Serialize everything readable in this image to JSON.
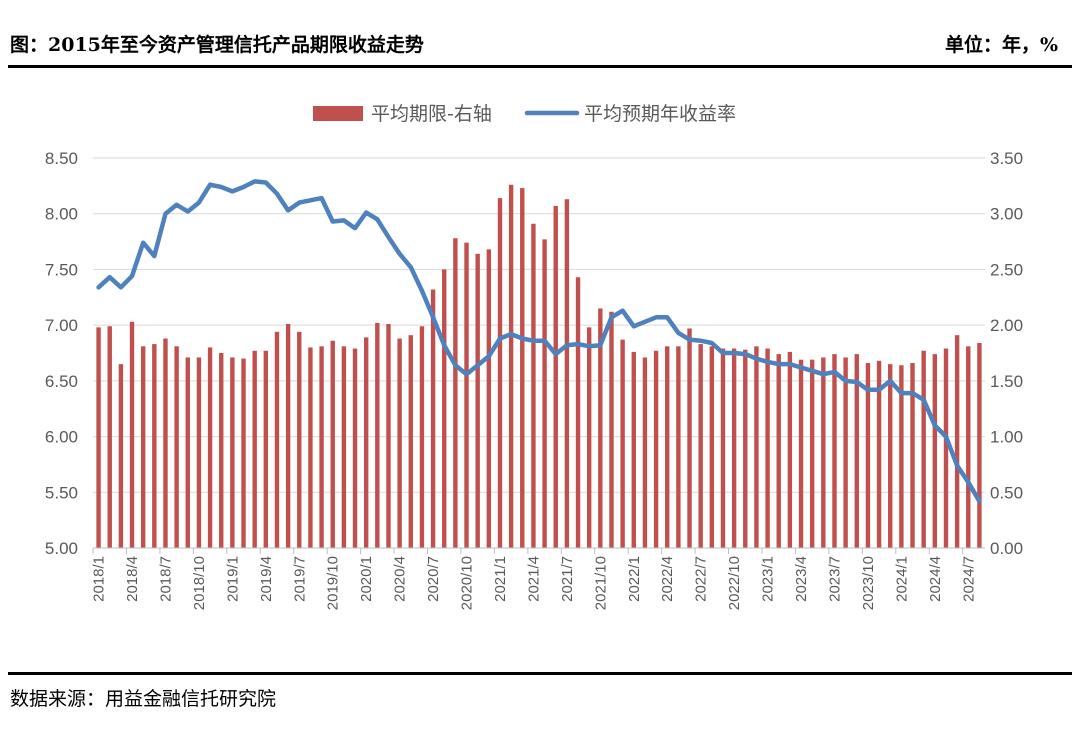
{
  "header": {
    "title": "图：2015年至今资产管理信托产品期限收益走势",
    "unit": "单位：年，%"
  },
  "footer": {
    "source": "数据来源：用益金融信托研究院"
  },
  "chart_data": {
    "type": "bar+line",
    "legend_position": "top",
    "grid": true,
    "colors": {
      "bar": "#C0504D",
      "line": "#4F81BD"
    },
    "left_axis": {
      "ylim": [
        5.0,
        8.5
      ],
      "ticks": [
        "5.00",
        "5.50",
        "6.00",
        "6.50",
        "7.00",
        "7.50",
        "8.00",
        "8.50"
      ]
    },
    "right_axis": {
      "ylim": [
        0.0,
        3.5
      ],
      "ticks": [
        "0.00",
        "0.50",
        "1.00",
        "1.50",
        "2.00",
        "2.50",
        "3.00",
        "3.50"
      ]
    },
    "x_tick_labels": [
      "2018/1",
      "2018/4",
      "2018/7",
      "2018/10",
      "2019/1",
      "2019/4",
      "2019/7",
      "2019/10",
      "2020/1",
      "2020/4",
      "2020/7",
      "2020/10",
      "2021/1",
      "2021/4",
      "2021/7",
      "2021/10",
      "2022/1",
      "2022/4",
      "2022/7",
      "2022/10",
      "2023/1",
      "2023/4",
      "2023/7",
      "2023/10",
      "2024/1",
      "2024/4",
      "2024/7"
    ],
    "categories": [
      "2018/1",
      "2018/2",
      "2018/3",
      "2018/4",
      "2018/5",
      "2018/6",
      "2018/7",
      "2018/8",
      "2018/9",
      "2018/10",
      "2018/11",
      "2018/12",
      "2019/1",
      "2019/2",
      "2019/3",
      "2019/4",
      "2019/5",
      "2019/6",
      "2019/7",
      "2019/8",
      "2019/9",
      "2019/10",
      "2019/11",
      "2019/12",
      "2020/1",
      "2020/2",
      "2020/3",
      "2020/4",
      "2020/5",
      "2020/6",
      "2020/7",
      "2020/8",
      "2020/9",
      "2020/10",
      "2020/11",
      "2020/12",
      "2021/1",
      "2021/2",
      "2021/3",
      "2021/4",
      "2021/5",
      "2021/6",
      "2021/7",
      "2021/8",
      "2021/9",
      "2021/10",
      "2021/11",
      "2021/12",
      "2022/1",
      "2022/2",
      "2022/3",
      "2022/4",
      "2022/5",
      "2022/6",
      "2022/7",
      "2022/8",
      "2022/9",
      "2022/10",
      "2022/11",
      "2022/12",
      "2023/1",
      "2023/2",
      "2023/3",
      "2023/4",
      "2023/5",
      "2023/6",
      "2023/7",
      "2023/8",
      "2023/9",
      "2023/10",
      "2023/11",
      "2023/12",
      "2024/1",
      "2024/2",
      "2024/3",
      "2024/4",
      "2024/5",
      "2024/6",
      "2024/7",
      "2024/8"
    ],
    "series": [
      {
        "name": "平均期限-右轴",
        "type": "bar",
        "axis": "right",
        "values": [
          1.98,
          1.99,
          1.65,
          2.03,
          1.81,
          1.83,
          1.88,
          1.81,
          1.71,
          1.71,
          1.8,
          1.75,
          1.71,
          1.7,
          1.77,
          1.77,
          1.94,
          2.01,
          1.94,
          1.8,
          1.81,
          1.86,
          1.81,
          1.79,
          1.89,
          2.02,
          2.01,
          1.88,
          1.91,
          1.99,
          2.32,
          2.5,
          2.78,
          2.74,
          2.64,
          2.68,
          3.14,
          3.26,
          3.23,
          2.91,
          2.77,
          3.07,
          3.13,
          2.43,
          1.98,
          2.15,
          2.12,
          1.87,
          1.76,
          1.71,
          1.77,
          1.81,
          1.81,
          1.97,
          1.83,
          1.81,
          1.79,
          1.79,
          1.78,
          1.81,
          1.79,
          1.74,
          1.76,
          1.69,
          1.69,
          1.71,
          1.74,
          1.71,
          1.74,
          1.66,
          1.68,
          1.65,
          1.64,
          1.66,
          1.77,
          1.74,
          1.79,
          1.91,
          1.81,
          1.84
        ]
      },
      {
        "name": "平均预期年收益率",
        "type": "line",
        "axis": "left",
        "values": [
          7.34,
          7.43,
          7.34,
          7.44,
          7.74,
          7.62,
          8.0,
          8.08,
          8.02,
          8.1,
          8.26,
          8.24,
          8.2,
          8.24,
          8.29,
          8.28,
          8.18,
          8.03,
          8.1,
          8.12,
          8.14,
          7.93,
          7.94,
          7.87,
          8.01,
          7.95,
          7.79,
          7.64,
          7.52,
          7.31,
          7.07,
          6.82,
          6.64,
          6.56,
          6.64,
          6.72,
          6.88,
          6.92,
          6.88,
          6.86,
          6.86,
          6.74,
          6.82,
          6.83,
          6.81,
          6.82,
          7.07,
          7.13,
          6.99,
          7.03,
          7.07,
          7.07,
          6.93,
          6.87,
          6.86,
          6.84,
          6.75,
          6.75,
          6.74,
          6.7,
          6.67,
          6.65,
          6.65,
          6.62,
          6.59,
          6.56,
          6.58,
          6.5,
          6.49,
          6.42,
          6.42,
          6.5,
          6.39,
          6.39,
          6.33,
          6.1,
          6.0,
          5.74,
          5.59,
          5.42
        ]
      }
    ]
  }
}
